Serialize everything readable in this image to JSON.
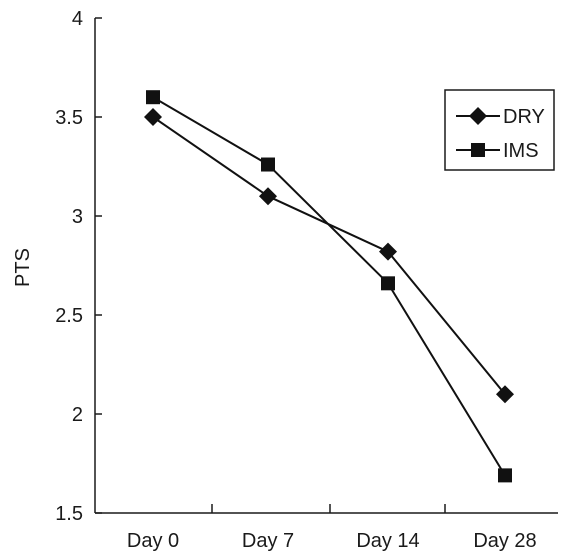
{
  "chart_data": {
    "type": "line",
    "title": "",
    "xlabel": "",
    "ylabel": "PTS",
    "categories": [
      "Day 0",
      "Day 7",
      "Day 14",
      "Day 28"
    ],
    "ylim": [
      1.5,
      4
    ],
    "yticks": [
      "1.5",
      "2",
      "2.5",
      "3",
      "3.5",
      "4"
    ],
    "grid": false,
    "legend_position": "top-right",
    "series": [
      {
        "name": "DRY",
        "marker": "diamond",
        "color": "#111111",
        "values": [
          3.5,
          3.1,
          2.82,
          2.1
        ]
      },
      {
        "name": "IMS",
        "marker": "square",
        "color": "#111111",
        "values": [
          3.6,
          3.26,
          2.66,
          1.69
        ]
      }
    ]
  }
}
